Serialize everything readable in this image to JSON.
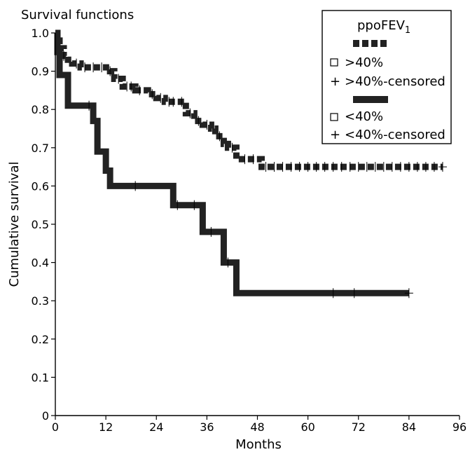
{
  "chart_data": {
    "type": "line",
    "title": "Survival functions",
    "xlabel": "Months",
    "ylabel": "Cumulative survival",
    "xlim": [
      0,
      96
    ],
    "ylim": [
      0,
      1.0
    ],
    "x_ticks": [
      0,
      12,
      24,
      36,
      48,
      60,
      72,
      84,
      96
    ],
    "y_ticks": [
      0,
      0.1,
      0.2,
      0.3,
      0.4,
      0.5,
      0.6,
      0.7,
      0.8,
      0.9,
      1.0
    ],
    "grid": false,
    "legend_position": "top-right",
    "legend": {
      "title": "ppoFEV",
      "title_subscript": "1",
      "entries": [
        ">40%",
        ">40%-censored",
        "<40%",
        "<40%-censored"
      ]
    },
    "series": [
      {
        "name": ">40%",
        "style": "dashed-thick",
        "steps": [
          [
            0,
            1.0
          ],
          [
            0.5,
            0.98
          ],
          [
            1,
            0.96
          ],
          [
            2,
            0.94
          ],
          [
            3,
            0.93
          ],
          [
            4,
            0.92
          ],
          [
            6,
            0.91
          ],
          [
            13,
            0.9
          ],
          [
            14,
            0.88
          ],
          [
            16,
            0.86
          ],
          [
            19,
            0.85
          ],
          [
            22,
            0.84
          ],
          [
            24,
            0.83
          ],
          [
            26,
            0.82
          ],
          [
            31,
            0.79
          ],
          [
            33,
            0.77
          ],
          [
            35,
            0.76
          ],
          [
            37,
            0.75
          ],
          [
            38,
            0.73
          ],
          [
            40,
            0.71
          ],
          [
            41,
            0.7
          ],
          [
            43,
            0.67
          ],
          [
            49,
            0.65
          ],
          [
            92,
            0.65
          ]
        ],
        "censored_x": [
          2,
          5,
          7,
          9,
          11,
          13,
          15,
          17,
          18,
          20,
          23,
          25,
          27,
          28,
          30,
          32,
          34,
          36,
          39,
          42,
          45,
          47,
          50,
          52,
          54,
          56,
          58,
          60,
          62,
          64,
          66,
          68,
          70,
          72,
          74,
          76,
          78,
          80,
          82,
          84,
          86,
          88,
          90,
          92
        ]
      },
      {
        "name": "<40%",
        "style": "solid-thick",
        "steps": [
          [
            0,
            1.0
          ],
          [
            0.5,
            0.95
          ],
          [
            1,
            0.89
          ],
          [
            3,
            0.81
          ],
          [
            9,
            0.77
          ],
          [
            10,
            0.69
          ],
          [
            12,
            0.64
          ],
          [
            13,
            0.6
          ],
          [
            28,
            0.55
          ],
          [
            35,
            0.48
          ],
          [
            40,
            0.4
          ],
          [
            43,
            0.32
          ],
          [
            84,
            0.32
          ]
        ],
        "censored_x": [
          8,
          19,
          29,
          33,
          37,
          41,
          66,
          71,
          84
        ]
      }
    ]
  }
}
